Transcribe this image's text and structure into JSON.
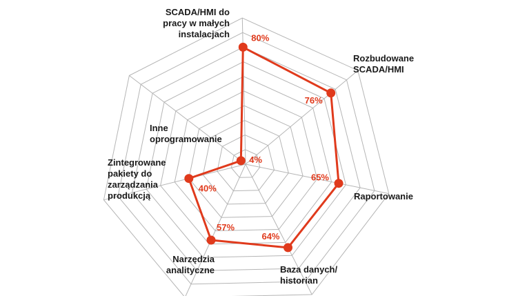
{
  "chart_data": {
    "type": "radar",
    "title": "",
    "scale": {
      "min": 0,
      "max": 100,
      "rings": 10,
      "unit": "%"
    },
    "grid": true,
    "legend": "none",
    "axes": [
      {
        "name": "SCADA/HMI do pracy w małych instalacjach",
        "lines": [
          "SCADA/HMI do",
          "pracy w małych",
          "instalacjach"
        ],
        "value": 80,
        "value_text": "80%"
      },
      {
        "name": "Rozbudowane SCADA/HMI",
        "lines": [
          "Rozbudowane",
          "SCADA/HMI"
        ],
        "value": 76,
        "value_text": "76%"
      },
      {
        "name": "Raportowanie",
        "lines": [
          "Raportowanie"
        ],
        "value": 65,
        "value_text": "65%"
      },
      {
        "name": "Baza danych/historian",
        "lines": [
          "Baza danych/",
          "historian"
        ],
        "value": 64,
        "value_text": "64%"
      },
      {
        "name": "Narzędzia analityczne",
        "lines": [
          "Narzędzia",
          "analityczne"
        ],
        "value": 57,
        "value_text": "57%"
      },
      {
        "name": "Zintegrowane pakiety do zarządzania produkcją",
        "lines": [
          "Zintegrowane",
          "pakiety do",
          "zarządzania",
          "produkcją"
        ],
        "value": 40,
        "value_text": "40%"
      },
      {
        "name": "Inne oprogramowanie",
        "lines": [
          "Inne",
          "oprogramowanie"
        ],
        "value": 4,
        "value_text": "4%"
      }
    ],
    "colors": {
      "series": "#e03a1c",
      "grid": "#b5b5b5",
      "axis_text": "#1a1a1a"
    }
  }
}
